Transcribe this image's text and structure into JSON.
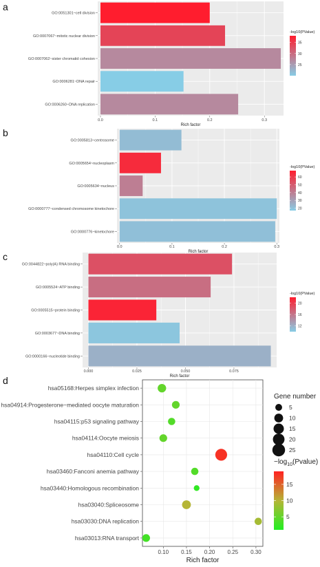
{
  "colors": {
    "panel_bg": "#ebebeb",
    "grid": "#ffffff",
    "abc_low": "#87cde6",
    "abc_high": "#ff1d2e",
    "d_low": "#22ee22",
    "d_mid": "#b5b536",
    "d_high": "#ff2222"
  },
  "chart_data": [
    {
      "panel": "a",
      "type": "bar",
      "orientation": "horizontal",
      "categories": [
        "GO:0051301~cell division",
        "GO:0007067~mitotic nuclear division",
        "GO:0007062~sister chromatid cohesion",
        "GO:0006281~DNA repair",
        "GO:0006260~DNA replication"
      ],
      "values": [
        0.2,
        0.228,
        0.33,
        0.152,
        0.252
      ],
      "color_values": [
        38,
        34,
        27,
        20,
        27
      ],
      "xlabel": "Rich factor",
      "xlim": [
        -0.005,
        0.335
      ],
      "xticks": [
        0.0,
        0.1,
        0.2,
        0.3
      ],
      "xtick_labels": [
        "0.0",
        "0.1",
        "0.2",
        "0.3"
      ],
      "legend": {
        "title": "-log10(PValue)",
        "min": 20,
        "max": 38,
        "ticks": [
          25,
          30,
          35
        ],
        "placement": "right"
      },
      "grid": true
    },
    {
      "panel": "b",
      "type": "bar",
      "orientation": "horizontal",
      "categories": [
        "GO:0005813~centrosome",
        "GO:0005654~nucleoplasm",
        "GO:0005634~nucleus",
        "GO:0000777~condensed chromosome kinetochore",
        "GO:0000776~kinetochore"
      ],
      "values": [
        0.118,
        0.079,
        0.044,
        0.3,
        0.297
      ],
      "color_values": [
        22,
        64,
        40,
        20,
        21
      ],
      "xlabel": "Rich factor",
      "xlim": [
        -0.005,
        0.305
      ],
      "xticks": [
        0.0,
        0.1,
        0.2,
        0.3
      ],
      "xtick_labels": [
        "0.0",
        "0.1",
        "0.2",
        "0.3"
      ],
      "legend": {
        "title": "-log10(PValue)",
        "min": 17,
        "max": 68,
        "ticks": [
          20,
          30,
          40,
          50,
          60
        ],
        "placement": "right"
      },
      "grid": true
    },
    {
      "panel": "c",
      "type": "bar",
      "orientation": "horizontal",
      "categories": [
        "GO:0044822~poly(A) RNA binding",
        "GO:0005524~ATP binding",
        "GO:0005515~protein binding",
        "GO:0003677~DNA binding",
        "GO:0000166~nucleotide binding"
      ],
      "values": [
        0.074,
        0.063,
        0.035,
        0.047,
        0.094
      ],
      "color_values": [
        18.5,
        16.5,
        21.5,
        10.5,
        12
      ],
      "xlabel": "Rich factor",
      "xlim": [
        -0.003,
        0.097
      ],
      "xticks": [
        0.0,
        0.025,
        0.05,
        0.075
      ],
      "xtick_labels": [
        "0.000",
        "0.025",
        "0.050",
        "0.075"
      ],
      "legend": {
        "title": "-log10(PValue)",
        "min": 10,
        "max": 22,
        "ticks": [
          12,
          16,
          20
        ],
        "placement": "right"
      },
      "grid": true
    },
    {
      "panel": "d",
      "type": "scatter",
      "categories": [
        "hsa05168:Herpes simplex infection",
        "hsa04914:Progesterone−mediated oocyte maturation",
        "hsa04115:p53 signaling pathway",
        "hsa04114:Oocyte meiosis",
        "hsa04110:Cell cycle",
        "hsa03460:Fanconi anemia pathway",
        "hsa03440:Homologous recombination",
        "hsa03040:Spliceosome",
        "hsa03030:DNA replication",
        "hsa03013:RNA transport"
      ],
      "x": [
        0.097,
        0.127,
        0.118,
        0.1,
        0.225,
        0.168,
        0.172,
        0.15,
        0.305,
        0.063
      ],
      "gene_number": [
        9,
        7,
        6,
        7,
        21,
        6,
        3,
        10,
        6,
        7
      ],
      "pvalue_log": [
        5,
        5,
        4,
        5,
        18,
        4,
        2,
        10,
        9,
        3
      ],
      "xlabel": "Rich factor",
      "xlim": [
        0.055,
        0.315
      ],
      "xticks": [
        0.1,
        0.15,
        0.2,
        0.25,
        0.3
      ],
      "xtick_labels": [
        "0.10",
        "0.15",
        "0.20",
        "0.25",
        "0.30"
      ],
      "size_legend": {
        "title": "Gene number",
        "values": [
          5,
          10,
          15,
          20,
          25
        ],
        "labels": [
          "5",
          "10",
          "15",
          "20",
          "25"
        ]
      },
      "color_legend": {
        "title_prefix": "−log",
        "title_sub": "10",
        "title_suffix": "(Pvalue)",
        "min": 1,
        "max": 19,
        "ticks": [
          5,
          10,
          15
        ],
        "tick_labels": [
          "5",
          "10",
          "15"
        ]
      },
      "grid": true
    }
  ]
}
